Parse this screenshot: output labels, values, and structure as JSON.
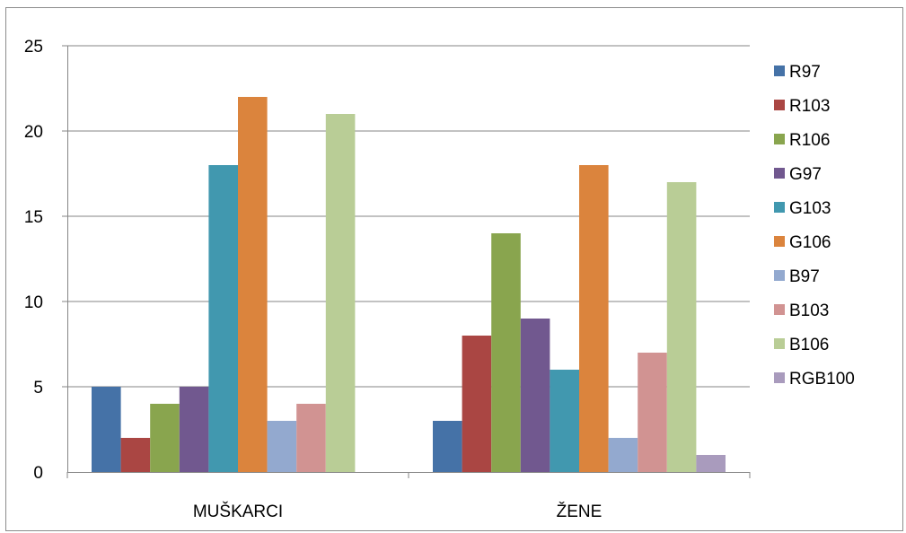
{
  "chart_data": {
    "type": "bar",
    "categories": [
      "MUŠKARCI",
      "ŽENE"
    ],
    "series": [
      {
        "name": "R97",
        "color": "#4572A7",
        "values": [
          5,
          3
        ]
      },
      {
        "name": "R103",
        "color": "#AA4643",
        "values": [
          2,
          8
        ]
      },
      {
        "name": "R106",
        "color": "#89A54E",
        "values": [
          4,
          14
        ]
      },
      {
        "name": "G97",
        "color": "#71588F",
        "values": [
          5,
          9
        ]
      },
      {
        "name": "G103",
        "color": "#4198AF",
        "values": [
          18,
          6
        ]
      },
      {
        "name": "G106",
        "color": "#DB843D",
        "values": [
          22,
          18
        ]
      },
      {
        "name": "B97",
        "color": "#93A9CF",
        "values": [
          3,
          2
        ]
      },
      {
        "name": "B103",
        "color": "#D19392",
        "values": [
          4,
          7
        ]
      },
      {
        "name": "B106",
        "color": "#B9CD96",
        "values": [
          21,
          17
        ]
      },
      {
        "name": "RGB100",
        "color": "#A99BBD",
        "values": [
          0,
          1
        ]
      }
    ],
    "y_ticks": [
      "0",
      "5",
      "10",
      "15",
      "20",
      "25"
    ],
    "ylim": [
      0,
      25
    ],
    "grid": true,
    "legend_position": "right",
    "title": "",
    "xlabel": "",
    "ylabel": ""
  }
}
